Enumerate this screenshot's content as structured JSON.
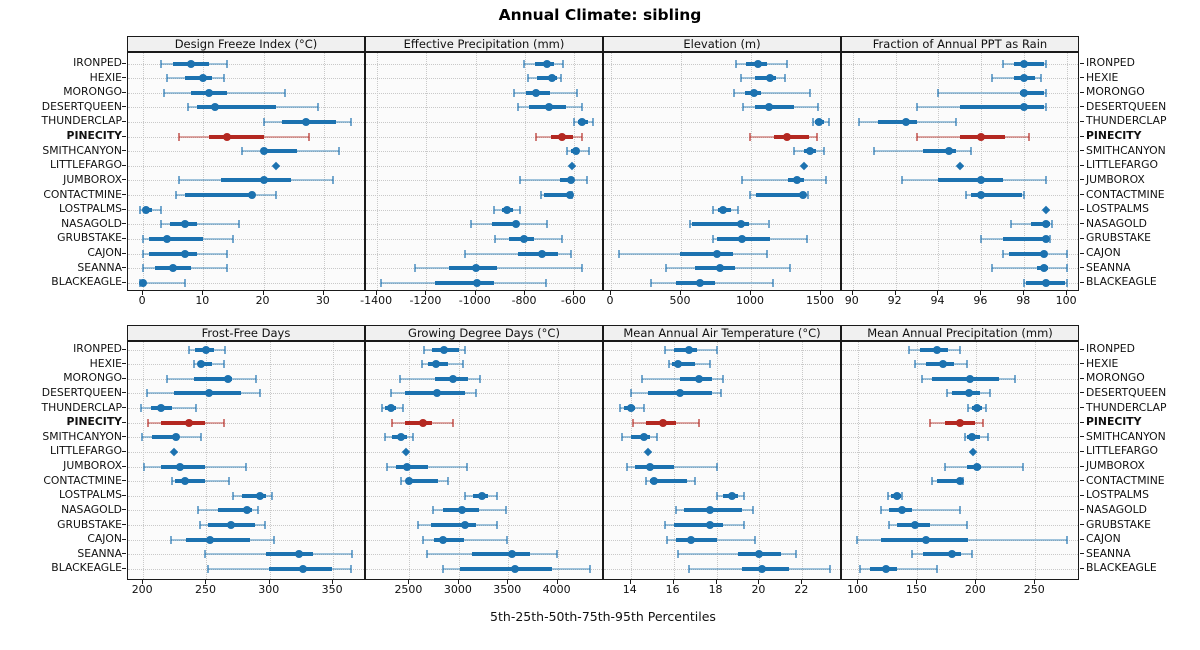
{
  "title": "Annual Climate: sibling",
  "footer": "5th-25th-50th-75th-95th Percentiles",
  "sites": [
    "IRONPED",
    "HEXIE",
    "MORONGO",
    "DESERTQUEEN",
    "THUNDERCLAP",
    "PINECITY",
    "SMITHCANYON",
    "LITTLEFARGO",
    "JUMBOROX",
    "CONTACTMINE",
    "LOSTPALMS",
    "NASAGOLD",
    "GRUBSTAKE",
    "CAJON",
    "SEANNA",
    "BLACKEAGLE"
  ],
  "highlight_site": "PINECITY",
  "colors": {
    "primary": "#1C72B0",
    "primary_light": "rgba(28,114,176,0.40)",
    "primary_cap": "rgba(28,114,176,0.60)",
    "highlight": "#B42821",
    "highlight_light": "rgba(180,40,33,0.40)",
    "highlight_cap": "rgba(180,40,33,0.60)",
    "grid": "#C9C9C9",
    "panel_bg": "#FBFBFB",
    "strip_bg": "#F0F0F0",
    "border": "#1A1A1A"
  },
  "chart_data": {
    "type": "scatter",
    "variant": "percentile_interval_dotplot",
    "percentiles": [
      5,
      25,
      50,
      75,
      95
    ],
    "legend_position": "none",
    "grid": "dotted",
    "panels": [
      {
        "title": "Design Freeze Index (°C)",
        "grid_row": 0,
        "grid_col": 0,
        "xlim": [
          -2.5,
          37
        ],
        "ticks": [
          0,
          10,
          20,
          30
        ],
        "values": [
          [
            3,
            5,
            8,
            11,
            14
          ],
          [
            4,
            7,
            10,
            11.5,
            13.5
          ],
          [
            3.5,
            8,
            11,
            14,
            23.5
          ],
          [
            7.5,
            9,
            12,
            22,
            29
          ],
          [
            20,
            23,
            27,
            32,
            34.5
          ],
          [
            6,
            11,
            14,
            20,
            27.5
          ],
          [
            16.5,
            19.5,
            20,
            25.5,
            32.5
          ],
          [
            22,
            22,
            22,
            22,
            22
          ],
          [
            6,
            13,
            20,
            24.5,
            31.5
          ],
          [
            5.5,
            7,
            18,
            18.3,
            22
          ],
          [
            -0.5,
            0,
            0.5,
            1.5,
            3
          ],
          [
            3,
            4.5,
            7,
            9,
            16
          ],
          [
            0,
            1,
            4,
            10,
            15
          ],
          [
            0,
            1,
            7,
            9,
            14
          ],
          [
            0,
            2,
            5,
            8,
            14
          ],
          [
            -0.5,
            -0.3,
            0,
            0.5,
            7
          ]
        ]
      },
      {
        "title": "Effective Precipitation (mm)",
        "grid_row": 0,
        "grid_col": 1,
        "xlim": [
          -1445,
          -480
        ],
        "ticks": [
          -1400,
          -1200,
          -1000,
          -800,
          -600
        ],
        "values": [
          [
            -806,
            -758,
            -712,
            -681,
            -647
          ],
          [
            -790,
            -750,
            -690,
            -670,
            -655
          ],
          [
            -845,
            -795,
            -755,
            -700,
            -590
          ],
          [
            -830,
            -785,
            -705,
            -635,
            -570
          ],
          [
            -600,
            -585,
            -570,
            -545,
            -525
          ],
          [
            -755,
            -695,
            -650,
            -605,
            -570
          ],
          [
            -630,
            -615,
            -593,
            -580,
            -542
          ],
          [
            -610,
            -610,
            -610,
            -610,
            -610
          ],
          [
            -820,
            -660,
            -615,
            -600,
            -550
          ],
          [
            -735,
            -725,
            -618,
            -614,
            -608
          ],
          [
            -925,
            -895,
            -872,
            -850,
            -820
          ],
          [
            -1020,
            -935,
            -835,
            -825,
            -712
          ],
          [
            -920,
            -865,
            -806,
            -765,
            -650
          ],
          [
            -1045,
            -830,
            -730,
            -667,
            -613
          ],
          [
            -1245,
            -1110,
            -1000,
            -915,
            -570
          ],
          [
            -1385,
            -1165,
            -995,
            -925,
            -715
          ]
        ]
      },
      {
        "title": "Elevation (m)",
        "grid_row": 0,
        "grid_col": 2,
        "xlim": [
          -50,
          1650
        ],
        "ticks": [
          0,
          500,
          1000,
          1500
        ],
        "values": [
          [
            890,
            965,
            1050,
            1115,
            1260
          ],
          [
            925,
            1030,
            1135,
            1180,
            1245
          ],
          [
            880,
            955,
            1020,
            1075,
            1420
          ],
          [
            945,
            1030,
            1125,
            1305,
            1480
          ],
          [
            1445,
            1460,
            1485,
            1520,
            1555
          ],
          [
            990,
            1165,
            1258,
            1415,
            1470
          ],
          [
            1310,
            1378,
            1420,
            1462,
            1520
          ],
          [
            1378,
            1378,
            1378,
            1378,
            1378
          ],
          [
            935,
            1265,
            1330,
            1380,
            1535
          ],
          [
            990,
            1035,
            1370,
            1382,
            1410
          ],
          [
            725,
            765,
            800,
            860,
            905
          ],
          [
            565,
            580,
            925,
            985,
            1125
          ],
          [
            725,
            755,
            935,
            1135,
            1400
          ],
          [
            60,
            495,
            755,
            875,
            1115
          ],
          [
            395,
            600,
            775,
            885,
            1280
          ],
          [
            285,
            465,
            635,
            740,
            1160
          ]
        ]
      },
      {
        "title": "Fraction of Annual PPT as Rain",
        "grid_row": 0,
        "grid_col": 3,
        "xlim": [
          89.5,
          100.6
        ],
        "ticks": [
          90,
          92,
          94,
          96,
          98,
          100
        ],
        "values": [
          [
            97,
            97.5,
            98,
            98.9,
            99
          ],
          [
            96.5,
            97.5,
            98,
            98.5,
            98.8
          ],
          [
            94,
            97.8,
            98,
            98.9,
            99
          ],
          [
            93,
            95,
            98,
            98.9,
            99
          ],
          [
            90.3,
            91.2,
            92.5,
            93,
            94.8
          ],
          [
            93,
            95,
            96,
            97.1,
            98.2
          ],
          [
            91,
            93.3,
            94.5,
            94.8,
            95.5
          ],
          [
            95,
            95,
            95,
            95,
            95
          ],
          [
            92.3,
            94,
            96,
            97,
            99
          ],
          [
            95.3,
            95.5,
            96,
            97.9,
            98
          ],
          [
            99,
            99,
            99,
            99,
            99
          ],
          [
            97.4,
            98.3,
            99,
            99.2,
            99.3
          ],
          [
            96,
            97,
            99,
            99.1,
            99.2
          ],
          [
            97,
            97.3,
            98.9,
            99,
            100
          ],
          [
            96.5,
            98.6,
            98.9,
            99.1,
            100
          ],
          [
            98,
            98.1,
            99,
            99.9,
            100
          ]
        ]
      },
      {
        "title": "Frost-Free Days",
        "grid_row": 1,
        "grid_col": 0,
        "xlim": [
          188,
          376
        ],
        "ticks": [
          200,
          250,
          300,
          350
        ],
        "values": [
          [
            236,
            241,
            250,
            256,
            265
          ],
          [
            240,
            244,
            246,
            254,
            264
          ],
          [
            219,
            240,
            267,
            270,
            289
          ],
          [
            203,
            224,
            252,
            277,
            292
          ],
          [
            198,
            206,
            214,
            223,
            242
          ],
          [
            204,
            214,
            236,
            249,
            264
          ],
          [
            199,
            207,
            226,
            228,
            246
          ],
          [
            224,
            224,
            224,
            224,
            224
          ],
          [
            201,
            214,
            229,
            249,
            281
          ],
          [
            223,
            225,
            233,
            249,
            268
          ],
          [
            271,
            278,
            292,
            297,
            302
          ],
          [
            243,
            259,
            282,
            286,
            291
          ],
          [
            245,
            251,
            269,
            288,
            296
          ],
          [
            222,
            234,
            253,
            284,
            303
          ],
          [
            249,
            297,
            323,
            334,
            365
          ],
          [
            251,
            299,
            326,
            349,
            364
          ]
        ]
      },
      {
        "title": "Growing Degree Days (°C)",
        "grid_row": 1,
        "grid_col": 1,
        "xlim": [
          2060,
          4470
        ],
        "ticks": [
          2500,
          3000,
          3500,
          4000
        ],
        "values": [
          [
            2650,
            2730,
            2850,
            3000,
            3060
          ],
          [
            2630,
            2685,
            2770,
            2895,
            3040
          ],
          [
            2400,
            2760,
            2940,
            3090,
            3215
          ],
          [
            2310,
            2450,
            2780,
            3065,
            3175
          ],
          [
            2220,
            2250,
            2310,
            2365,
            2430
          ],
          [
            2325,
            2450,
            2635,
            2725,
            2945
          ],
          [
            2250,
            2320,
            2415,
            2475,
            2535
          ],
          [
            2460,
            2460,
            2460,
            2460,
            2460
          ],
          [
            2275,
            2365,
            2476,
            2685,
            3080
          ],
          [
            2410,
            2460,
            2500,
            2785,
            2895
          ],
          [
            3065,
            3145,
            3230,
            3300,
            3385
          ],
          [
            2735,
            2835,
            3030,
            3200,
            3480
          ],
          [
            2590,
            2720,
            3065,
            3170,
            3385
          ],
          [
            2640,
            2745,
            2835,
            3055,
            3490
          ],
          [
            2680,
            3135,
            3535,
            3725,
            3995
          ],
          [
            2835,
            3015,
            3570,
            3945,
            4325
          ]
        ]
      },
      {
        "title": "Mean Annual Air Temperature (°C)",
        "grid_row": 1,
        "grid_col": 2,
        "xlim": [
          12.75,
          23.85
        ],
        "ticks": [
          14,
          16,
          18,
          20,
          22
        ],
        "values": [
          [
            15.6,
            16.0,
            16.7,
            17.1,
            18.0
          ],
          [
            15.8,
            15.9,
            16.2,
            17.0,
            17.7
          ],
          [
            14.5,
            16.3,
            17.2,
            17.8,
            18.3
          ],
          [
            14.0,
            14.8,
            16.3,
            17.8,
            18.2
          ],
          [
            13.5,
            13.7,
            14.0,
            14.2,
            14.6
          ],
          [
            14.1,
            14.7,
            15.5,
            16.1,
            17.2
          ],
          [
            13.6,
            14.0,
            14.6,
            14.9,
            15.2
          ],
          [
            14.8,
            14.8,
            14.8,
            14.8,
            14.8
          ],
          [
            13.8,
            14.2,
            14.9,
            16.0,
            18.0
          ],
          [
            14.7,
            14.9,
            15.1,
            16.6,
            17.0
          ],
          [
            18.0,
            18.3,
            18.7,
            19.0,
            19.3
          ],
          [
            16.1,
            16.5,
            17.7,
            19.2,
            19.7
          ],
          [
            15.6,
            16.0,
            17.7,
            18.3,
            19.3
          ],
          [
            15.7,
            16.1,
            16.8,
            18.0,
            19.8
          ],
          [
            16.2,
            19.0,
            20.0,
            21.0,
            21.7
          ],
          [
            16.7,
            19.2,
            20.1,
            21.4,
            23.3
          ]
        ]
      },
      {
        "title": "Mean Annual Precipitation (mm)",
        "grid_row": 1,
        "grid_col": 3,
        "xlim": [
          86,
          288
        ],
        "ticks": [
          100,
          150,
          200,
          250
        ],
        "values": [
          [
            143,
            152,
            167,
            176,
            186
          ],
          [
            148,
            157,
            172,
            181,
            192
          ],
          [
            154,
            162,
            195,
            219,
            233
          ],
          [
            175,
            179,
            194,
            203,
            212
          ],
          [
            193,
            196,
            201,
            205,
            208
          ],
          [
            161,
            173,
            186,
            199,
            206
          ],
          [
            190,
            192,
            196,
            203,
            210
          ],
          [
            197,
            197,
            197,
            197,
            197
          ],
          [
            173,
            192,
            201,
            204,
            240
          ],
          [
            162,
            167,
            186,
            187,
            189
          ],
          [
            125,
            128,
            133,
            136,
            137
          ],
          [
            119,
            126,
            137,
            145,
            186
          ],
          [
            126,
            133,
            148,
            161,
            192
          ],
          [
            99,
            119,
            157,
            193,
            277
          ],
          [
            145,
            155,
            179,
            187,
            196
          ],
          [
            101,
            110,
            123,
            133,
            167
          ]
        ]
      }
    ]
  }
}
